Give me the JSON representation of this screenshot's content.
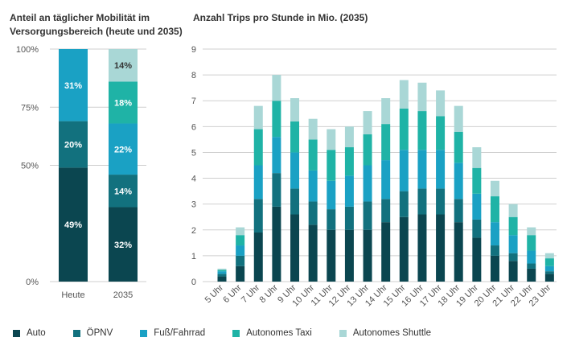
{
  "titles": {
    "left": "Anteil an täglicher Mobilität im Versorgungsbereich (heute und 2035)",
    "right": "Anzahl Trips pro Stunde in Mio. (2035)"
  },
  "colors": {
    "auto": "#0b4650",
    "oepnv": "#12717e",
    "fuss": "#1aa1c4",
    "taxi": "#1fb3a6",
    "shuttle": "#a9d7d6"
  },
  "legend": [
    {
      "key": "auto",
      "label": "Auto"
    },
    {
      "key": "oepnv",
      "label": "ÖPNV"
    },
    {
      "key": "fuss",
      "label": "Fuß/Fahrrad"
    },
    {
      "key": "taxi",
      "label": "Autonomes Taxi"
    },
    {
      "key": "shuttle",
      "label": "Autonomes Shuttle"
    }
  ],
  "chart_data": [
    {
      "type": "bar",
      "stacked": true,
      "title": "Anteil an täglicher Mobilität im Versorgungsbereich (heute und 2035)",
      "categories": [
        "Heute",
        "2035"
      ],
      "ylim": [
        0,
        100
      ],
      "yticks": [
        "0%",
        "50%",
        "75%",
        "100%"
      ],
      "ytick_values": [
        0,
        50,
        75,
        100
      ],
      "series": [
        {
          "name": "Auto",
          "key": "auto",
          "values": [
            49,
            32
          ],
          "labels": [
            "49%",
            "32%"
          ]
        },
        {
          "name": "ÖPNV",
          "key": "oepnv",
          "values": [
            20,
            14
          ],
          "labels": [
            "20%",
            "14%"
          ]
        },
        {
          "name": "Fuß/Fahrrad",
          "key": "fuss",
          "values": [
            31,
            22
          ],
          "labels": [
            "31%",
            "22%"
          ]
        },
        {
          "name": "Autonomes Taxi",
          "key": "taxi",
          "values": [
            0,
            18
          ],
          "labels": [
            "",
            "18%"
          ]
        },
        {
          "name": "Autonomes Shuttle",
          "key": "shuttle",
          "values": [
            0,
            14
          ],
          "labels": [
            "",
            "14%"
          ]
        }
      ]
    },
    {
      "type": "bar",
      "stacked": true,
      "title": "Anzahl Trips pro Stunde in Mio. (2035)",
      "categories": [
        "5 Uhr",
        "6 Uhr",
        "7 Uhr",
        "8 Uhr",
        "9 Uhr",
        "10 Uhr",
        "11 Uhr",
        "12 Uhr",
        "13 Uhr",
        "14 Uhr",
        "15 Uhr",
        "16 Uhr",
        "17 Uhr",
        "18 Uhr",
        "19 Uhr",
        "20 Uhr",
        "21 Uhr",
        "22 Uhr",
        "23 Uhr"
      ],
      "ylim": [
        0,
        9
      ],
      "yticks": [
        "0",
        "1",
        "2",
        "3",
        "4",
        "5",
        "6",
        "7",
        "8",
        "9"
      ],
      "series": [
        {
          "name": "Auto",
          "key": "auto",
          "values": [
            0.2,
            0.6,
            1.9,
            2.9,
            2.6,
            2.2,
            2.0,
            2.0,
            2.0,
            2.3,
            2.5,
            2.6,
            2.6,
            2.3,
            1.7,
            1.0,
            0.8,
            0.5,
            0.3
          ]
        },
        {
          "name": "ÖPNV",
          "key": "oepnv",
          "values": [
            0.1,
            0.4,
            1.3,
            1.3,
            1.0,
            0.9,
            0.8,
            0.9,
            1.1,
            0.9,
            1.0,
            1.0,
            1.0,
            0.9,
            0.7,
            0.4,
            0.3,
            0.2,
            0.1
          ]
        },
        {
          "name": "Fuß/Fahrrad",
          "key": "fuss",
          "values": [
            0.1,
            0.4,
            1.3,
            1.4,
            1.4,
            1.2,
            1.1,
            1.2,
            1.4,
            1.5,
            1.6,
            1.5,
            1.5,
            1.4,
            1.0,
            0.9,
            0.7,
            0.5,
            0.2
          ]
        },
        {
          "name": "Autonomes Taxi",
          "key": "taxi",
          "values": [
            0.05,
            0.4,
            1.4,
            1.4,
            1.2,
            1.2,
            1.2,
            1.1,
            1.2,
            1.4,
            1.6,
            1.5,
            1.3,
            1.2,
            1.0,
            1.0,
            0.7,
            0.6,
            0.3
          ]
        },
        {
          "name": "Autonomes Shuttle",
          "key": "shuttle",
          "values": [
            0.05,
            0.3,
            0.9,
            1.0,
            0.9,
            0.8,
            0.8,
            0.8,
            0.9,
            1.0,
            1.1,
            1.1,
            1.0,
            1.0,
            0.8,
            0.6,
            0.5,
            0.3,
            0.2
          ]
        }
      ]
    }
  ]
}
